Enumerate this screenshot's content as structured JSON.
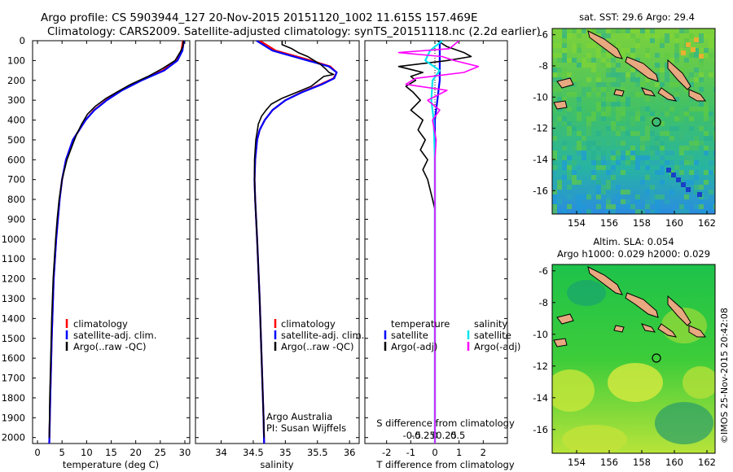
{
  "header": {
    "line1": "Argo profile: CS 5903944_127 20-Nov-2015 20151120_1002 11.615S 157.469E",
    "line2": "Climatology: CARS2009. Satellite-adjusted climatology: synTS_20151118.nc (2.2d earlier)"
  },
  "depth_ticks": [
    "0",
    "100",
    "200",
    "300",
    "400",
    "500",
    "600",
    "700",
    "800",
    "900",
    "1000",
    "1100",
    "1200",
    "1300",
    "1400",
    "1500",
    "1600",
    "1700",
    "1800",
    "1900",
    "2000"
  ],
  "colors": {
    "climatology": "#ff0000",
    "satellite": "#0000ff",
    "argo": "#000000",
    "sal_satellite": "#00e5ee",
    "sal_argo": "#ff00ff"
  },
  "chart_data": [
    {
      "type": "line",
      "id": "temperature",
      "xlabel": "temperature (deg C)",
      "xlim": [
        -1,
        31
      ],
      "ylim": [
        2030,
        0
      ],
      "xticks": [
        "0",
        "5",
        "10",
        "15",
        "20",
        "25",
        "30"
      ],
      "legend": [
        "climatology",
        "satellite-adj. clim.",
        "Argo(..raw -QC)"
      ],
      "series": [
        {
          "name": "climatology",
          "depth": [
            0,
            50,
            100,
            150,
            200,
            250,
            300,
            350,
            400,
            500,
            600,
            700,
            800,
            1000,
            1200,
            1500,
            1800,
            2030
          ],
          "values": [
            29.6,
            29.3,
            28.3,
            25.5,
            21.0,
            17.0,
            14.0,
            11.5,
            9.8,
            7.2,
            5.8,
            5.0,
            4.5,
            3.8,
            3.3,
            2.9,
            2.6,
            2.4
          ]
        },
        {
          "name": "satellite",
          "depth": [
            0,
            50,
            100,
            150,
            200,
            250,
            300,
            350,
            400,
            500,
            600,
            700,
            800,
            1000,
            1200,
            1500,
            1800,
            2030
          ],
          "values": [
            29.8,
            29.5,
            28.5,
            25.8,
            21.2,
            17.2,
            14.1,
            11.6,
            9.8,
            7.2,
            5.8,
            5.0,
            4.5,
            3.8,
            3.3,
            2.9,
            2.6,
            2.4
          ]
        },
        {
          "name": "argo",
          "depth": [
            0,
            30,
            60,
            100,
            140,
            180,
            220,
            250,
            290,
            330,
            370,
            420,
            470,
            520,
            600,
            700,
            800,
            900,
            1000,
            1200,
            1400,
            1600,
            1800,
            2000
          ],
          "values": [
            29.7,
            29.6,
            29.0,
            28.0,
            25.5,
            22.5,
            19.0,
            16.8,
            14.0,
            11.8,
            10.2,
            9.0,
            8.0,
            7.2,
            6.0,
            5.0,
            4.4,
            4.0,
            3.7,
            3.2,
            2.9,
            2.7,
            2.5,
            2.4
          ]
        }
      ]
    },
    {
      "type": "line",
      "id": "salinity",
      "xlabel": "salinity",
      "xlim": [
        33.6,
        36.15
      ],
      "ylim": [
        2030,
        0
      ],
      "xticks": [
        "34",
        "34.5",
        "35",
        "35.5",
        "36"
      ],
      "legend": [
        "climatology",
        "satellite-adj. clim.",
        "Argo(..raw -QC)"
      ],
      "annotation": [
        "Argo Australia",
        "PI: Susan Wijffels"
      ],
      "series": [
        {
          "name": "climatology",
          "depth": [
            0,
            50,
            100,
            130,
            160,
            190,
            220,
            260,
            300,
            350,
            400,
            450,
            500,
            600,
            700,
            800,
            1000,
            1300,
            1600,
            1900,
            2030
          ],
          "values": [
            34.6,
            34.85,
            35.4,
            35.7,
            35.8,
            35.75,
            35.55,
            35.25,
            35.0,
            34.8,
            34.68,
            34.6,
            34.56,
            34.53,
            34.52,
            34.53,
            34.56,
            34.6,
            34.63,
            34.66,
            34.67
          ]
        },
        {
          "name": "satellite",
          "depth": [
            0,
            50,
            100,
            130,
            160,
            190,
            220,
            260,
            300,
            350,
            400,
            450,
            500,
            600,
            700,
            800,
            1000,
            1300,
            1600,
            1900,
            2030
          ],
          "values": [
            34.55,
            34.8,
            35.35,
            35.68,
            35.8,
            35.76,
            35.57,
            35.26,
            35.0,
            34.8,
            34.68,
            34.6,
            34.56,
            34.53,
            34.52,
            34.53,
            34.56,
            34.6,
            34.63,
            34.66,
            34.67
          ]
        },
        {
          "name": "argo",
          "depth": [
            0,
            20,
            40,
            60,
            80,
            100,
            120,
            140,
            160,
            170,
            180,
            200,
            230,
            260,
            290,
            320,
            350,
            380,
            420,
            460,
            500,
            550,
            600,
            650,
            700,
            800,
            1000,
            1300,
            1600,
            1900,
            2000
          ],
          "values": [
            34.95,
            34.95,
            35.1,
            35.2,
            35.35,
            35.45,
            35.55,
            35.62,
            35.68,
            35.75,
            35.6,
            35.52,
            35.4,
            35.18,
            34.95,
            34.78,
            34.7,
            34.63,
            34.58,
            34.56,
            34.54,
            34.53,
            34.52,
            34.52,
            34.52,
            34.53,
            34.56,
            34.6,
            34.63,
            34.66,
            34.67
          ]
        }
      ]
    },
    {
      "type": "line",
      "id": "difference",
      "xlabel": "T difference from climatology",
      "xlabel_top": "S difference from climatology",
      "xlim": [
        -2.9,
        3.0
      ],
      "ylim": [
        2030,
        0
      ],
      "xticks": [
        "-2",
        "-1",
        "0",
        "1",
        "2"
      ],
      "xticks_s": [
        "-0.5",
        "-0.25",
        "0",
        "0.25",
        "0.5"
      ],
      "legend_left_title": "temperature",
      "legend_right_title": "salinity",
      "legend": [
        "satellite",
        "Argo(-adj)",
        "satellite",
        "Argo(-adj)"
      ],
      "series": [
        {
          "name": "T satellite",
          "depth": [
            0,
            100,
            200,
            300,
            400,
            600,
            800,
            1000,
            1500,
            2030
          ],
          "values": [
            0.2,
            0.2,
            0.2,
            0.1,
            0.0,
            0.0,
            0.0,
            0.0,
            0.0,
            0.0
          ]
        },
        {
          "name": "T Argo(-adj)",
          "depth": [
            0,
            30,
            60,
            80,
            100,
            130,
            160,
            180,
            200,
            230,
            260,
            300,
            350,
            400,
            450,
            500,
            550,
            600,
            650,
            700,
            750,
            800,
            850,
            900
          ],
          "values": [
            0.1,
            0.5,
            1.2,
            1.5,
            0.5,
            -1.5,
            -0.5,
            -1.0,
            -0.8,
            -1.2,
            -0.9,
            -0.6,
            -1.0,
            -0.5,
            -0.7,
            -0.4,
            -0.6,
            -0.3,
            -0.5,
            -0.3,
            -0.2,
            -0.1,
            0.0,
            0.0
          ]
        },
        {
          "name": "S satellite",
          "depth": [
            0,
            50,
            100,
            150,
            200,
            300,
            400,
            600,
            800,
            1000,
            1500,
            2030
          ],
          "values": [
            0.3,
            -0.2,
            -0.4,
            0.2,
            -0.1,
            -0.15,
            -0.05,
            0.0,
            0.0,
            0.0,
            0.0,
            0.0
          ]
        },
        {
          "name": "S Argo(-adj)",
          "depth": [
            0,
            40,
            60,
            80,
            100,
            130,
            160,
            190,
            220,
            250,
            300,
            350,
            400,
            500,
            600,
            700,
            800,
            1000,
            1300,
            2030
          ],
          "values": [
            1.0,
            0.6,
            -1.5,
            0.3,
            0.8,
            1.8,
            1.2,
            -0.8,
            -1.2,
            0.5,
            -0.3,
            0.2,
            -0.1,
            0.05,
            0.0,
            0.0,
            0.0,
            0.0,
            0.0,
            0.0
          ]
        }
      ]
    }
  ],
  "map_sst": {
    "title": "sat. SST: 29.6  Argo: 29.4",
    "xticks": [
      "154",
      "156",
      "158",
      "160",
      "162"
    ],
    "yticks": [
      "-6",
      "-8",
      "-10",
      "-12",
      "-14",
      "-16"
    ]
  },
  "map_sla": {
    "title_line1": "Altim. SLA: 0.054",
    "title_line2": "Argo h1000: 0.029  h2000: 0.029",
    "xticks": [
      "154",
      "156",
      "158",
      "160",
      "162"
    ],
    "yticks": [
      "-6",
      "-8",
      "-10",
      "-12",
      "-14",
      "-16"
    ]
  },
  "credit": "©IMOS 25-Nov-2015 20:42:08"
}
